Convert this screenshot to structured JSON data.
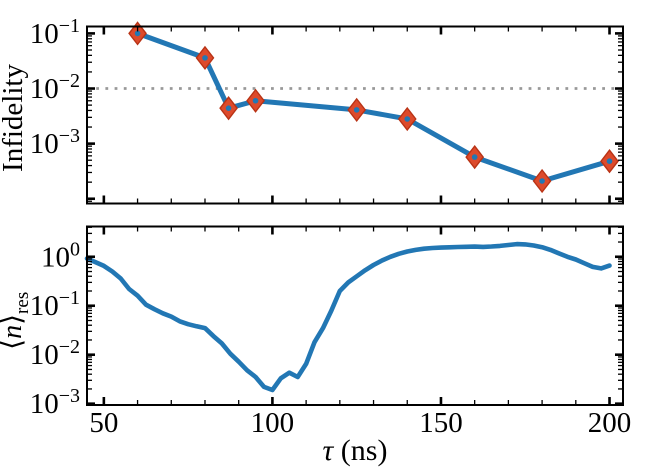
{
  "labels": {
    "infidelity_ylabel": "Infidelity",
    "n_res": {
      "open": "⟨",
      "var": "n",
      "close": "⟩",
      "sub": "res"
    },
    "xlabel": {
      "symbol": "τ",
      "unit": " (ns)"
    }
  },
  "colors": {
    "line": "#2277b4",
    "marker_fill": "#dd4a2b",
    "marker_edge": "#b93315",
    "marker_dot": "#2277b4",
    "threshold": "#999999",
    "axis": "#000000",
    "background": "#ffffff"
  },
  "chart_data": [
    {
      "type": "line",
      "panel": "top",
      "title": "",
      "ylabel": "Infidelity",
      "xlabel": "",
      "yscale": "log",
      "xlim": [
        45,
        204
      ],
      "ylim": [
        8.2e-05,
        0.1335
      ],
      "xticks": [
        50,
        100,
        150,
        200
      ],
      "xtick_labels": null,
      "x_minor_step": 10,
      "ytick_label_exponents": [
        -1,
        -2,
        -3
      ],
      "grid": false,
      "legend": "none",
      "threshold": {
        "value": 0.01,
        "style": "dotted",
        "color": "#999999"
      },
      "series": [
        {
          "name": "gate-infidelity-vs-tau",
          "marker": "diamond",
          "x": [
            60,
            80,
            87,
            95,
            125,
            140,
            160,
            180,
            200
          ],
          "y": [
            0.1,
            0.036,
            0.0044,
            0.006,
            0.0041,
            0.0028,
            0.00057,
            0.00021,
            0.00048
          ]
        }
      ]
    },
    {
      "type": "line",
      "panel": "bottom",
      "title": "",
      "ylabel": "⟨n⟩_res",
      "xlabel": "τ (ns)",
      "yscale": "log",
      "xlim": [
        45,
        204
      ],
      "ylim": [
        0.00094,
        4.15
      ],
      "xticks": [
        50,
        100,
        150,
        200
      ],
      "xtick_labels": [
        "50",
        "100",
        "150",
        "200"
      ],
      "x_minor_step": 10,
      "ytick_label_exponents": [
        0,
        -1,
        -2,
        -3
      ],
      "grid": false,
      "legend": "none",
      "threshold": null,
      "series": [
        {
          "name": "residual-photon-number-vs-tau",
          "marker": "none",
          "x": [
            45,
            47.5,
            50,
            52.5,
            55,
            57.5,
            60,
            62.5,
            65,
            67.5,
            70,
            72.5,
            75,
            77.5,
            80,
            82.5,
            85,
            87.5,
            90,
            92.5,
            95,
            97.5,
            100,
            102.5,
            105,
            107.5,
            110,
            112.5,
            115,
            117.5,
            120,
            122.5,
            125,
            127.5,
            130,
            132.5,
            135,
            137.5,
            140,
            142.5,
            145,
            147.5,
            150,
            152.5,
            155,
            157.5,
            160,
            162.5,
            165,
            167.5,
            170,
            172.5,
            175,
            177.5,
            180,
            182.5,
            185,
            187.5,
            190,
            192.5,
            195,
            197.5,
            200
          ],
          "y": [
            0.92,
            0.78,
            0.65,
            0.5,
            0.36,
            0.22,
            0.16,
            0.105,
            0.085,
            0.07,
            0.06,
            0.048,
            0.042,
            0.038,
            0.035,
            0.024,
            0.017,
            0.0105,
            0.0072,
            0.0048,
            0.0035,
            0.0022,
            0.0019,
            0.0033,
            0.0043,
            0.0035,
            0.0065,
            0.018,
            0.035,
            0.08,
            0.2,
            0.3,
            0.4,
            0.53,
            0.68,
            0.84,
            1.0,
            1.15,
            1.28,
            1.38,
            1.46,
            1.51,
            1.54,
            1.56,
            1.58,
            1.6,
            1.61,
            1.59,
            1.62,
            1.67,
            1.74,
            1.81,
            1.79,
            1.7,
            1.57,
            1.38,
            1.17,
            1.0,
            0.88,
            0.74,
            0.62,
            0.58,
            0.66
          ]
        }
      ]
    }
  ]
}
